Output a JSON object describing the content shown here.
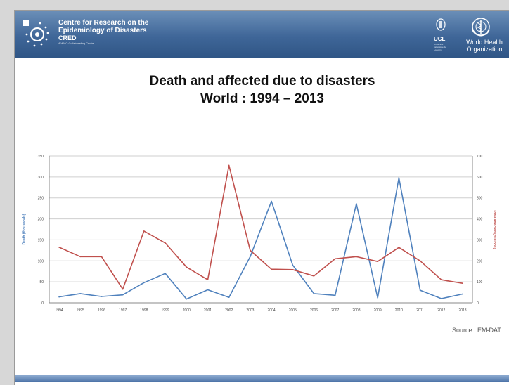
{
  "header": {
    "org_line1": "Centre for Research on the",
    "org_line2": "Epidemiology of Disasters",
    "org_line3": "CRED",
    "org_line4": "A WHO Collaborating Centre",
    "ucl_label": "UCL",
    "ucl_sub": "Université catholique de Louvain",
    "who_line1": "World Health",
    "who_line2": "Organization"
  },
  "slide": {
    "title_line1": "Death and affected due to disasters",
    "title_line2": "World : 1994 – 2013"
  },
  "source_text": "Source : EM-DAT",
  "colors": {
    "deaths_series": "#4f81bd",
    "affected_series": "#c0504d",
    "banner": "#3f6698",
    "axis": "#999999"
  },
  "chart_data": {
    "type": "line",
    "x": [
      "1994",
      "1995",
      "1996",
      "1997",
      "1998",
      "1999",
      "2000",
      "2001",
      "2002",
      "2003",
      "2004",
      "2005",
      "2006",
      "2007",
      "2008",
      "2009",
      "2010",
      "2011",
      "2012",
      "2013"
    ],
    "series": [
      {
        "name": "",
        "axis": "left",
        "color": "#4f81bd",
        "values": [
          14,
          22,
          15,
          19,
          48,
          70,
          9,
          31,
          13,
          110,
          242,
          90,
          22,
          18,
          236,
          12,
          298,
          30,
          10,
          21
        ]
      },
      {
        "name": "",
        "axis": "right",
        "color": "#c0504d",
        "values": [
          265,
          220,
          220,
          65,
          342,
          285,
          170,
          110,
          655,
          250,
          160,
          158,
          128,
          210,
          220,
          197,
          264,
          200,
          110,
          93
        ]
      }
    ],
    "ylabel": "Death (thousands)",
    "y2label": "Total affected (millions)",
    "ylim": [
      0,
      350
    ],
    "y2lim": [
      0,
      700
    ],
    "yticks": [
      "0",
      "50",
      "100",
      "150",
      "200",
      "250",
      "300",
      "350"
    ],
    "y2ticks": [
      "0",
      "100",
      "200",
      "300",
      "400",
      "500",
      "600",
      "700"
    ],
    "grid": true
  }
}
